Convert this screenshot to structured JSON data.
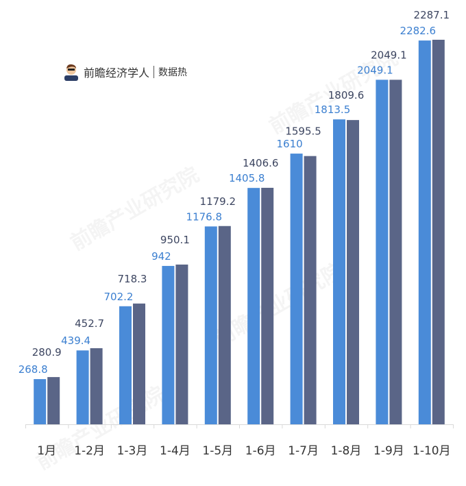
{
  "brand": {
    "name": "前瞻经济学人",
    "sub": "数据热",
    "watermark": "前瞻产业研究院"
  },
  "colors": {
    "series1": "#4a8bd8",
    "series2": "#5a6587",
    "label1": "#3b7fd0",
    "label2": "#3c4560",
    "axis": "#d9d9d9",
    "tick_text": "#333333"
  },
  "chart_data": {
    "type": "bar",
    "title": "",
    "xlabel": "",
    "ylabel": "",
    "ylim": [
      0,
      2300
    ],
    "grid": false,
    "legend": "none",
    "categories": [
      "1月",
      "1-2月",
      "1-3月",
      "1-4月",
      "1-5月",
      "1-6月",
      "1-7月",
      "1-8月",
      "1-9月",
      "1-10月"
    ],
    "series": [
      {
        "values": [
          268.8,
          439.4,
          702.2,
          942,
          1176.8,
          1405.8,
          1610,
          1813.5,
          2049.1,
          2282.6
        ]
      },
      {
        "values": [
          280.9,
          452.7,
          718.3,
          950.1,
          1179.2,
          1406.6,
          1595.5,
          1809.6,
          2049.1,
          2287.1
        ]
      }
    ]
  }
}
